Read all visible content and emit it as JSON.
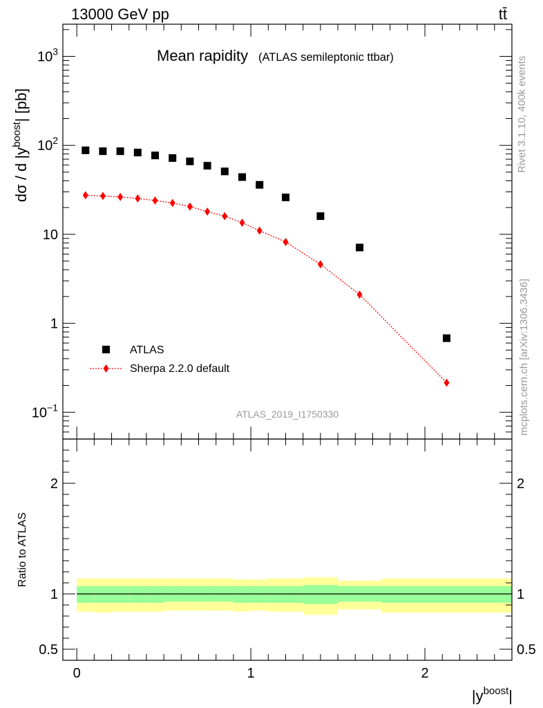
{
  "header": {
    "energy_label": "13000 GeV pp",
    "process_label": "tt̄",
    "title": "Mean rapidity",
    "subtitle": "(ATLAS semileptonic ttbar)",
    "analysis_id": "ATLAS_2019_I1750330",
    "side_rivet": "Rivet 3.1.10,  400k events",
    "side_mcplots": "mcplots.cern.ch [arXiv:1306.3436]"
  },
  "chart_data": [
    {
      "type": "scatter",
      "title": "Mean rapidity",
      "subtitle": "(ATLAS semileptonic ttbar)",
      "xlabel": "|y",
      "xlabel_sup": "boost",
      "xlabel_end": "|",
      "ylabel": "dσ / d |y",
      "ylabel_sup": "boost",
      "ylabel_end": "| [pb]",
      "yscale": "log",
      "xlim": [
        -0.08,
        2.5
      ],
      "ylim": [
        0.05,
        2300
      ],
      "x_ticks": [
        "0",
        "1",
        "2"
      ],
      "y_ticks": [
        {
          "value": 0.1,
          "base": "10",
          "exp": "−1"
        },
        {
          "value": 1,
          "base": "1",
          "exp": ""
        },
        {
          "value": 10,
          "base": "10",
          "exp": ""
        },
        {
          "value": 100,
          "base": "10",
          "exp": "2"
        },
        {
          "value": 1000,
          "base": "10",
          "exp": "3"
        }
      ],
      "legend_position": "bottom-left",
      "series": [
        {
          "name": "ATLAS",
          "marker": "square",
          "color": "#000000",
          "x": [
            0.05,
            0.15,
            0.25,
            0.35,
            0.45,
            0.55,
            0.65,
            0.75,
            0.85,
            0.95,
            1.05,
            1.2,
            1.4,
            1.625,
            2.125
          ],
          "y": [
            88,
            86,
            86,
            83,
            77,
            72,
            66,
            59,
            51,
            44,
            36,
            26,
            16,
            7.1,
            0.68
          ]
        },
        {
          "name": "Sherpa 2.2.0 default",
          "marker": "diamond",
          "line": "dotted",
          "color": "#ff0000",
          "x": [
            0.05,
            0.15,
            0.25,
            0.35,
            0.45,
            0.55,
            0.65,
            0.75,
            0.85,
            0.95,
            1.05,
            1.2,
            1.4,
            1.625,
            2.125
          ],
          "y": [
            27.5,
            27,
            26.3,
            25.3,
            24,
            22.5,
            20.5,
            18,
            16,
            13.5,
            11,
            8.2,
            4.6,
            2.1,
            0.215
          ]
        }
      ]
    },
    {
      "type": "area",
      "ylabel": "Ratio to ATLAS",
      "xlim": [
        -0.08,
        2.5
      ],
      "ylim": [
        0.4,
        2.4
      ],
      "y_ticks": [
        "0.5",
        "1",
        "2"
      ],
      "reference_line": 1,
      "band_colors": {
        "inner": "#99ff99",
        "outer": "#ffff99"
      },
      "bins": [
        {
          "x0": 0.0,
          "x1": 0.1,
          "inner": [
            0.92,
            1.07
          ],
          "outer": [
            0.84,
            1.14
          ]
        },
        {
          "x0": 0.1,
          "x1": 0.2,
          "inner": [
            0.92,
            1.07
          ],
          "outer": [
            0.83,
            1.14
          ]
        },
        {
          "x0": 0.2,
          "x1": 0.3,
          "inner": [
            0.92,
            1.07
          ],
          "outer": [
            0.84,
            1.14
          ]
        },
        {
          "x0": 0.3,
          "x1": 0.4,
          "inner": [
            0.92,
            1.07
          ],
          "outer": [
            0.84,
            1.14
          ]
        },
        {
          "x0": 0.4,
          "x1": 0.5,
          "inner": [
            0.92,
            1.07
          ],
          "outer": [
            0.84,
            1.14
          ]
        },
        {
          "x0": 0.5,
          "x1": 0.6,
          "inner": [
            0.93,
            1.07
          ],
          "outer": [
            0.85,
            1.14
          ]
        },
        {
          "x0": 0.6,
          "x1": 0.7,
          "inner": [
            0.93,
            1.07
          ],
          "outer": [
            0.85,
            1.14
          ]
        },
        {
          "x0": 0.7,
          "x1": 0.8,
          "inner": [
            0.93,
            1.07
          ],
          "outer": [
            0.85,
            1.14
          ]
        },
        {
          "x0": 0.8,
          "x1": 0.9,
          "inner": [
            0.93,
            1.07
          ],
          "outer": [
            0.85,
            1.14
          ]
        },
        {
          "x0": 0.9,
          "x1": 1.0,
          "inner": [
            0.92,
            1.07
          ],
          "outer": [
            0.84,
            1.13
          ]
        },
        {
          "x0": 1.0,
          "x1": 1.1,
          "inner": [
            0.92,
            1.07
          ],
          "outer": [
            0.85,
            1.13
          ]
        },
        {
          "x0": 1.1,
          "x1": 1.3,
          "inner": [
            0.92,
            1.07
          ],
          "outer": [
            0.84,
            1.14
          ]
        },
        {
          "x0": 1.3,
          "x1": 1.5,
          "inner": [
            0.91,
            1.08
          ],
          "outer": [
            0.81,
            1.15
          ]
        },
        {
          "x0": 1.5,
          "x1": 1.75,
          "inner": [
            0.93,
            1.07
          ],
          "outer": [
            0.86,
            1.12
          ]
        },
        {
          "x0": 1.75,
          "x1": 2.5,
          "inner": [
            0.92,
            1.07
          ],
          "outer": [
            0.83,
            1.14
          ]
        }
      ]
    }
  ]
}
